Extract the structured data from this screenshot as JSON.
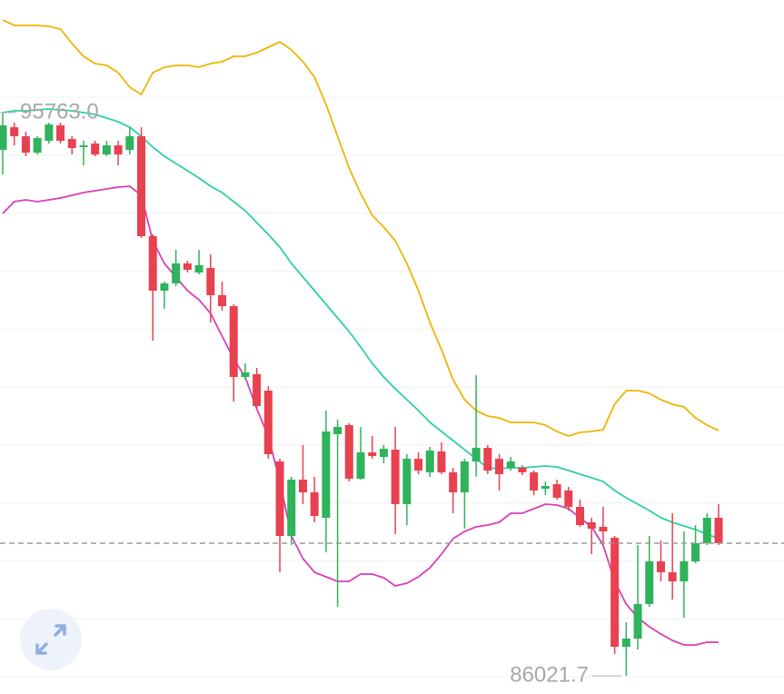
{
  "chart_data": {
    "type": "candlestick",
    "ylim": [
      85707,
      97711
    ],
    "up_color": "#2fb35b",
    "down_color": "#e8414f",
    "last_price": 88315,
    "ohlc": [
      [
        95119,
        95763,
        94694,
        95543
      ],
      [
        95511,
        95590,
        95197,
        95354
      ],
      [
        95354,
        95433,
        95009,
        95071
      ],
      [
        95071,
        95354,
        95040,
        95323
      ],
      [
        95276,
        95590,
        95229,
        95558
      ],
      [
        95543,
        95590,
        95229,
        95276
      ],
      [
        95307,
        95354,
        95040,
        95150
      ],
      [
        95166,
        95276,
        94851,
        95197
      ],
      [
        95229,
        95276,
        95009,
        95040
      ],
      [
        95040,
        95276,
        95009,
        95197
      ],
      [
        95197,
        95276,
        94851,
        95040
      ],
      [
        95119,
        95511,
        95040,
        95354
      ],
      [
        95354,
        95511,
        93594,
        93626
      ],
      [
        93626,
        93657,
        91819,
        92683
      ],
      [
        92683,
        92840,
        92369,
        92809
      ],
      [
        92809,
        93390,
        92762,
        93155
      ],
      [
        93155,
        93202,
        92997,
        93045
      ],
      [
        92997,
        93390,
        92966,
        93123
      ],
      [
        93076,
        93312,
        92133,
        92605
      ],
      [
        92605,
        92840,
        92337,
        92416
      ],
      [
        92416,
        92447,
        90766,
        91191
      ],
      [
        91191,
        91426,
        91143,
        91269
      ],
      [
        91238,
        91348,
        90641,
        90688
      ],
      [
        90955,
        91033,
        89776,
        89855
      ],
      [
        89729,
        89776,
        87812,
        88441
      ],
      [
        88441,
        89462,
        88284,
        89415
      ],
      [
        89415,
        90012,
        88991,
        89195
      ],
      [
        89195,
        89462,
        88677,
        88787
      ],
      [
        88755,
        90609,
        88158,
        90248
      ],
      [
        90201,
        90452,
        87215,
        90326
      ],
      [
        90358,
        90389,
        89384,
        89431
      ],
      [
        89431,
        90326,
        89415,
        89886
      ],
      [
        89886,
        90169,
        89776,
        89824
      ],
      [
        89808,
        90012,
        89698,
        89949
      ],
      [
        89934,
        90326,
        88472,
        88991
      ],
      [
        88991,
        89855,
        88629,
        89776
      ],
      [
        89776,
        89886,
        89509,
        89572
      ],
      [
        89541,
        89981,
        89462,
        89918
      ],
      [
        89902,
        90059,
        89509,
        89541
      ],
      [
        89541,
        89619,
        88834,
        89195
      ],
      [
        89195,
        89776,
        88567,
        89729
      ],
      [
        89729,
        91222,
        89462,
        89965
      ],
      [
        89965,
        90012,
        89509,
        89572
      ],
      [
        89776,
        89855,
        89227,
        89509
      ],
      [
        89619,
        89808,
        89572,
        89729
      ],
      [
        89619,
        89666,
        89494,
        89541
      ],
      [
        89541,
        89572,
        89148,
        89227
      ],
      [
        89258,
        89384,
        89148,
        89305
      ],
      [
        89336,
        89415,
        89069,
        89101
      ],
      [
        89227,
        89289,
        88881,
        88944
      ],
      [
        88944,
        89069,
        88598,
        88629
      ],
      [
        88677,
        88755,
        88127,
        88567
      ],
      [
        88598,
        88944,
        88284,
        88519
      ],
      [
        88409,
        88441,
        86398,
        86524
      ],
      [
        86524,
        86948,
        86021.7,
        86665
      ],
      [
        86665,
        88284,
        86477,
        87263
      ],
      [
        87263,
        88441,
        87215,
        88001
      ],
      [
        88001,
        88362,
        87655,
        87812
      ],
      [
        87812,
        88834,
        87341,
        87655
      ],
      [
        87655,
        88519,
        87027,
        88001
      ],
      [
        88001,
        88629,
        87970,
        88315
      ],
      [
        88315,
        88834,
        88284,
        88755
      ],
      [
        88755,
        88991,
        88284,
        88315
      ]
    ],
    "bands": [
      {
        "color": "#f0b400",
        "values": [
          97365,
          97271,
          97271,
          97271,
          97255,
          97208,
          96957,
          96737,
          96611,
          96580,
          96454,
          96203,
          96077,
          96454,
          96548,
          96580,
          96580,
          96548,
          96611,
          96643,
          96737,
          96737,
          96800,
          96894,
          96988,
          96847,
          96643,
          96375,
          95904,
          95354,
          94804,
          94364,
          93987,
          93783,
          93547,
          93155,
          92683,
          92133,
          91662,
          91143,
          90798,
          90609,
          90515,
          90483,
          90405,
          90405,
          90405,
          90358,
          90248,
          90169,
          90232,
          90248,
          90279,
          90719,
          90955,
          90955,
          90908,
          90798,
          90719,
          90672,
          90483,
          90358,
          90264
        ]
      },
      {
        "color": "#2ecfa6",
        "values": [
          95763,
          95794,
          95794,
          95810,
          95826,
          95810,
          95794,
          95763,
          95731,
          95668,
          95606,
          95511,
          95354,
          95166,
          95009,
          94883,
          94757,
          94631,
          94490,
          94380,
          94223,
          94066,
          93862,
          93657,
          93437,
          93155,
          92919,
          92683,
          92447,
          92212,
          91976,
          91709,
          91426,
          91191,
          90986,
          90798,
          90609,
          90405,
          90248,
          90091,
          89934,
          89776,
          89619,
          89604,
          89619,
          89619,
          89635,
          89651,
          89635,
          89572,
          89509,
          89446,
          89384,
          89227,
          89101,
          88991,
          88881,
          88755,
          88677,
          88614,
          88551,
          88472,
          88394
        ]
      },
      {
        "color": "#d83fb8",
        "values": [
          94019,
          94223,
          94254,
          94223,
          94254,
          94286,
          94333,
          94380,
          94411,
          94443,
          94474,
          94490,
          94333,
          93547,
          93155,
          92919,
          92683,
          92526,
          92290,
          91898,
          91505,
          91191,
          90641,
          90169,
          89384,
          88441,
          88048,
          87812,
          87734,
          87655,
          87655,
          87781,
          87781,
          87718,
          87577,
          87624,
          87734,
          87891,
          88127,
          88394,
          88519,
          88598,
          88629,
          88677,
          88834,
          88834,
          88912,
          88991,
          88975,
          88912,
          88755,
          88598,
          88284,
          87655,
          87263,
          87027,
          86870,
          86744,
          86634,
          86555,
          86555,
          86603,
          86603
        ]
      }
    ],
    "annotations": [
      {
        "value": 95763,
        "label": "95763.0"
      },
      {
        "value": 86021.7,
        "label": "86021.7"
      }
    ]
  }
}
